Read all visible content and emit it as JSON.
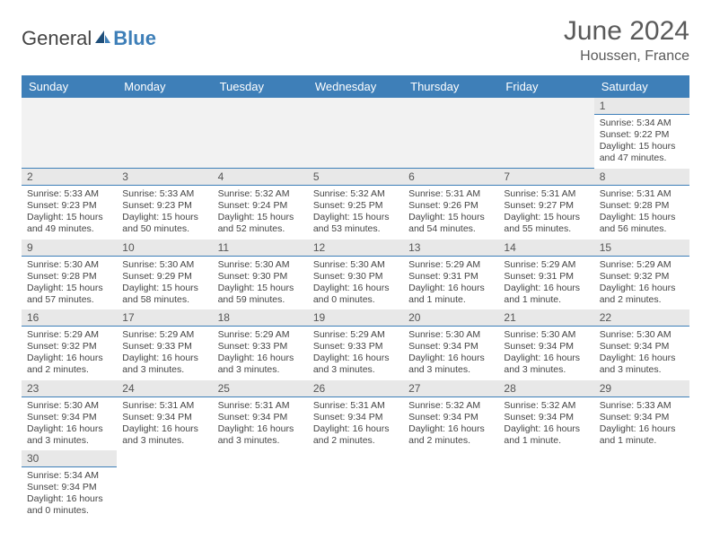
{
  "logo": {
    "part1": "General",
    "part2": "Blue"
  },
  "title": "June 2024",
  "subtitle": "Houssen, France",
  "colors": {
    "headerBar": "#3e7fb8",
    "dayNumBg": "#e8e8e8",
    "dayBorder": "#3e7fb8",
    "text": "#444444"
  },
  "weekdays": [
    "Sunday",
    "Monday",
    "Tuesday",
    "Wednesday",
    "Thursday",
    "Friday",
    "Saturday"
  ],
  "days": {
    "1": {
      "rise": "5:34 AM",
      "set": "9:22 PM",
      "dl": "15 hours and 47 minutes."
    },
    "2": {
      "rise": "5:33 AM",
      "set": "9:23 PM",
      "dl": "15 hours and 49 minutes."
    },
    "3": {
      "rise": "5:33 AM",
      "set": "9:23 PM",
      "dl": "15 hours and 50 minutes."
    },
    "4": {
      "rise": "5:32 AM",
      "set": "9:24 PM",
      "dl": "15 hours and 52 minutes."
    },
    "5": {
      "rise": "5:32 AM",
      "set": "9:25 PM",
      "dl": "15 hours and 53 minutes."
    },
    "6": {
      "rise": "5:31 AM",
      "set": "9:26 PM",
      "dl": "15 hours and 54 minutes."
    },
    "7": {
      "rise": "5:31 AM",
      "set": "9:27 PM",
      "dl": "15 hours and 55 minutes."
    },
    "8": {
      "rise": "5:31 AM",
      "set": "9:28 PM",
      "dl": "15 hours and 56 minutes."
    },
    "9": {
      "rise": "5:30 AM",
      "set": "9:28 PM",
      "dl": "15 hours and 57 minutes."
    },
    "10": {
      "rise": "5:30 AM",
      "set": "9:29 PM",
      "dl": "15 hours and 58 minutes."
    },
    "11": {
      "rise": "5:30 AM",
      "set": "9:30 PM",
      "dl": "15 hours and 59 minutes."
    },
    "12": {
      "rise": "5:30 AM",
      "set": "9:30 PM",
      "dl": "16 hours and 0 minutes."
    },
    "13": {
      "rise": "5:29 AM",
      "set": "9:31 PM",
      "dl": "16 hours and 1 minute."
    },
    "14": {
      "rise": "5:29 AM",
      "set": "9:31 PM",
      "dl": "16 hours and 1 minute."
    },
    "15": {
      "rise": "5:29 AM",
      "set": "9:32 PM",
      "dl": "16 hours and 2 minutes."
    },
    "16": {
      "rise": "5:29 AM",
      "set": "9:32 PM",
      "dl": "16 hours and 2 minutes."
    },
    "17": {
      "rise": "5:29 AM",
      "set": "9:33 PM",
      "dl": "16 hours and 3 minutes."
    },
    "18": {
      "rise": "5:29 AM",
      "set": "9:33 PM",
      "dl": "16 hours and 3 minutes."
    },
    "19": {
      "rise": "5:29 AM",
      "set": "9:33 PM",
      "dl": "16 hours and 3 minutes."
    },
    "20": {
      "rise": "5:30 AM",
      "set": "9:34 PM",
      "dl": "16 hours and 3 minutes."
    },
    "21": {
      "rise": "5:30 AM",
      "set": "9:34 PM",
      "dl": "16 hours and 3 minutes."
    },
    "22": {
      "rise": "5:30 AM",
      "set": "9:34 PM",
      "dl": "16 hours and 3 minutes."
    },
    "23": {
      "rise": "5:30 AM",
      "set": "9:34 PM",
      "dl": "16 hours and 3 minutes."
    },
    "24": {
      "rise": "5:31 AM",
      "set": "9:34 PM",
      "dl": "16 hours and 3 minutes."
    },
    "25": {
      "rise": "5:31 AM",
      "set": "9:34 PM",
      "dl": "16 hours and 3 minutes."
    },
    "26": {
      "rise": "5:31 AM",
      "set": "9:34 PM",
      "dl": "16 hours and 2 minutes."
    },
    "27": {
      "rise": "5:32 AM",
      "set": "9:34 PM",
      "dl": "16 hours and 2 minutes."
    },
    "28": {
      "rise": "5:32 AM",
      "set": "9:34 PM",
      "dl": "16 hours and 1 minute."
    },
    "29": {
      "rise": "5:33 AM",
      "set": "9:34 PM",
      "dl": "16 hours and 1 minute."
    },
    "30": {
      "rise": "5:34 AM",
      "set": "9:34 PM",
      "dl": "16 hours and 0 minutes."
    }
  },
  "labels": {
    "sunrise": "Sunrise: ",
    "sunset": "Sunset: ",
    "daylight": "Daylight: "
  },
  "layout": [
    [
      null,
      null,
      null,
      null,
      null,
      null,
      "1"
    ],
    [
      "2",
      "3",
      "4",
      "5",
      "6",
      "7",
      "8"
    ],
    [
      "9",
      "10",
      "11",
      "12",
      "13",
      "14",
      "15"
    ],
    [
      "16",
      "17",
      "18",
      "19",
      "20",
      "21",
      "22"
    ],
    [
      "23",
      "24",
      "25",
      "26",
      "27",
      "28",
      "29"
    ],
    [
      "30",
      null,
      null,
      null,
      null,
      null,
      null
    ]
  ]
}
